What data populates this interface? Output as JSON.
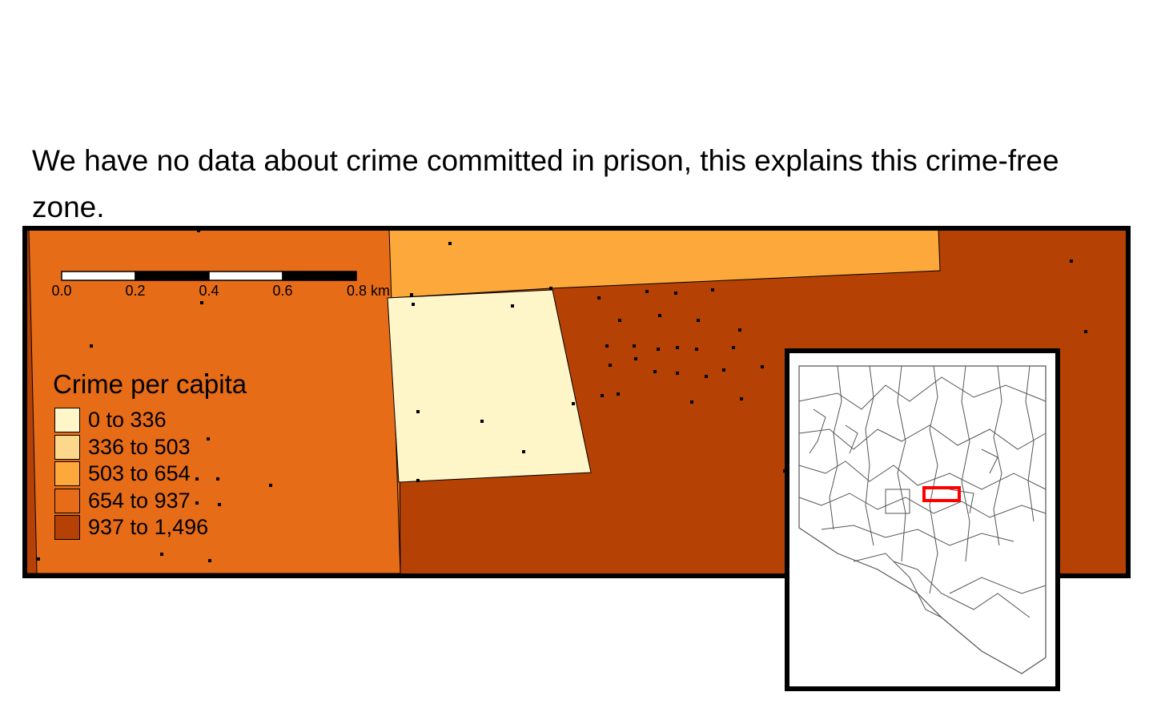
{
  "caption": "We have no data about crime committed in prison, this explains this crime-free zone.",
  "legend": {
    "title": "Crime per capita",
    "classes": [
      {
        "label": "0 to 336",
        "color": "#fef6c9"
      },
      {
        "label": "336 to 503",
        "color": "#fdd88c"
      },
      {
        "label": "503 to 654",
        "color": "#fca83b"
      },
      {
        "label": "654 to 937",
        "color": "#e76c18"
      },
      {
        "label": "937 to 1,496",
        "color": "#b54204"
      }
    ]
  },
  "scalebar": {
    "ticks": [
      "0.0",
      "0.2",
      "0.4",
      "0.6",
      "0.8 km"
    ]
  },
  "inset": {
    "highlight_color": "#ff0000"
  },
  "colors": {
    "frame": "#000000",
    "points": "#000000"
  }
}
